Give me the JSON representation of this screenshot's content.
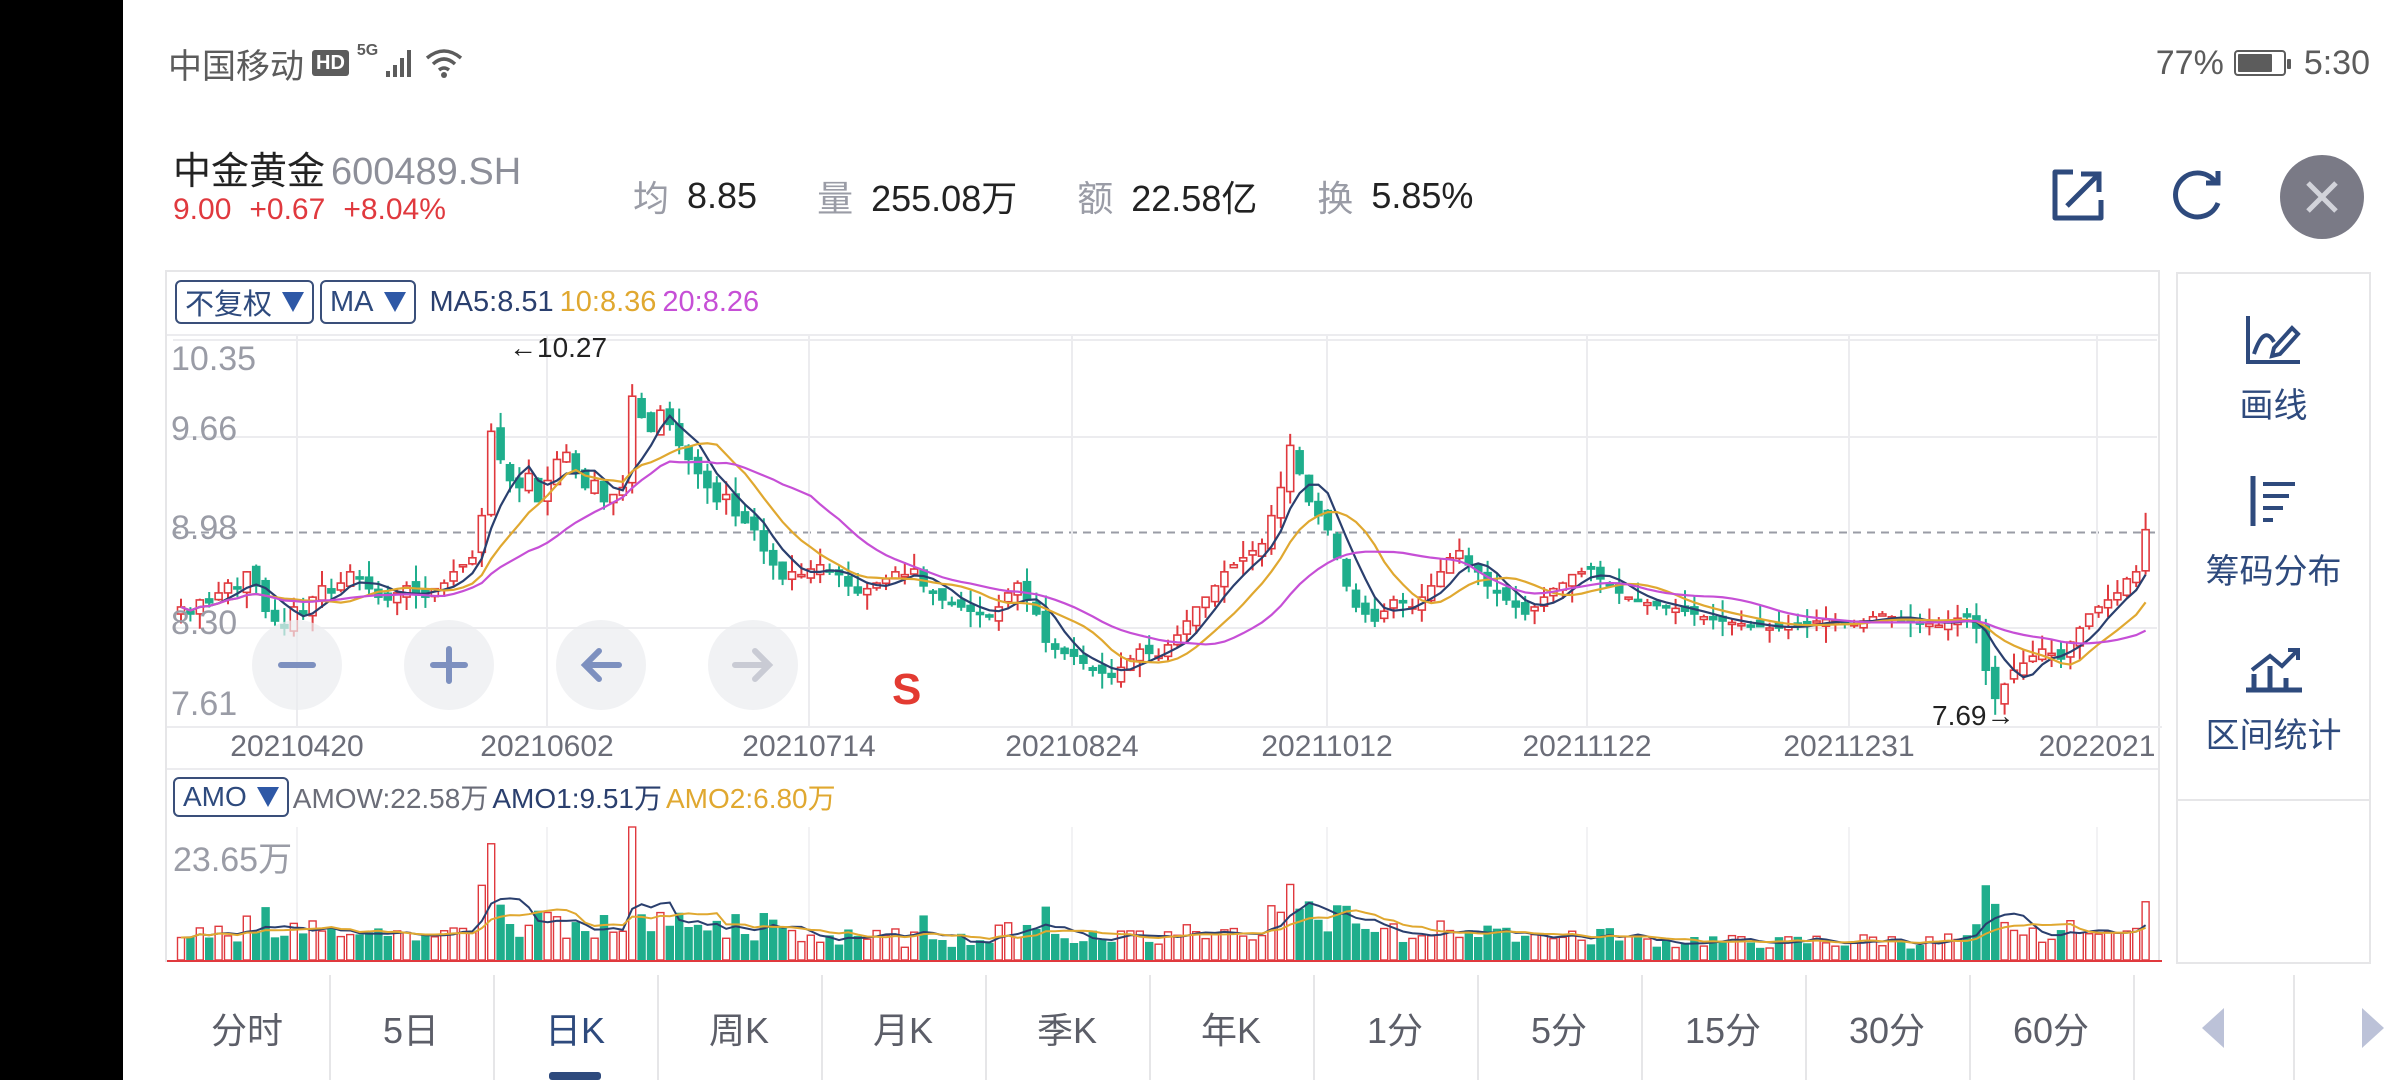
{
  "status_bar": {
    "carrier": "中国移动",
    "hd_badge": "HD",
    "network": "5G",
    "battery_percent": "77%",
    "time": "5:30"
  },
  "header": {
    "stock_name": "中金黄金",
    "stock_code": "600489.SH",
    "price": "9.00",
    "change": "+0.67",
    "change_pct": "+8.04%",
    "stats": [
      {
        "label": "均",
        "value": "8.85"
      },
      {
        "label": "量",
        "value": "255.08万"
      },
      {
        "label": "额",
        "value": "22.58亿"
      },
      {
        "label": "换",
        "value": "5.85%"
      }
    ],
    "buttons": {
      "share": "share-icon",
      "refresh": "refresh-icon",
      "close": "close-icon"
    }
  },
  "chart_toolbar": {
    "adjust_select": "不复权",
    "indicator_select": "MA",
    "ma5": "MA5:8.51",
    "ma10": "10:8.36",
    "ma20": "20:8.26"
  },
  "volume_toolbar": {
    "indicator_select": "AMO",
    "amow": "AMOW:22.58万",
    "amo1": "AMO1:9.51万",
    "amo2": "AMO2:6.80万",
    "max_label": "23.65万"
  },
  "zoom_controls": [
    "zoom-out",
    "zoom-in",
    "pan-left",
    "pan-right"
  ],
  "signal_marker": "S",
  "side_panel": {
    "items": [
      {
        "label": "画线",
        "icon": "draw-line-icon"
      },
      {
        "label": "筹码分布",
        "icon": "chip-distribution-icon"
      },
      {
        "label": "区间统计",
        "icon": "interval-stats-icon"
      }
    ]
  },
  "tabs": [
    {
      "label": "分时",
      "active": false
    },
    {
      "label": "5日",
      "active": false
    },
    {
      "label": "日K",
      "active": true
    },
    {
      "label": "周K",
      "active": false
    },
    {
      "label": "月K",
      "active": false
    },
    {
      "label": "季K",
      "active": false
    },
    {
      "label": "年K",
      "active": false
    },
    {
      "label": "1分",
      "active": false
    },
    {
      "label": "5分",
      "active": false
    },
    {
      "label": "15分",
      "active": false
    },
    {
      "label": "30分",
      "active": false
    },
    {
      "label": "60分",
      "active": false
    }
  ],
  "colors": {
    "up": "#e0393e",
    "down": "#1fae8c",
    "ma5": "#2a3f6e",
    "ma10": "#e0a830",
    "ma20": "#c64fd6",
    "accent": "#2e4a7d"
  },
  "chart_data": [
    {
      "type": "candlestick",
      "title": "中金黄金 600489.SH 日K",
      "y_ticks": [
        10.35,
        9.66,
        8.98,
        8.3,
        7.61
      ],
      "ylim": [
        7.61,
        10.35
      ],
      "x_ticks": [
        "20210420",
        "20210602",
        "20210714",
        "20210824",
        "20211012",
        "20211122",
        "20211231",
        "2022021"
      ],
      "reference_line": 8.98,
      "annotations": [
        {
          "text": "←10.27",
          "value": 10.27
        },
        {
          "text": "7.69→",
          "value": 7.69
        }
      ],
      "legend": [
        "MA5:8.51",
        "10:8.36",
        "20:8.26"
      ],
      "grid": true,
      "close_series": [
        8.45,
        8.4,
        8.5,
        8.48,
        8.55,
        8.62,
        8.58,
        8.7,
        8.6,
        8.42,
        8.35,
        8.3,
        8.45,
        8.4,
        8.52,
        8.6,
        8.55,
        8.62,
        8.7,
        8.65,
        8.58,
        8.52,
        8.5,
        8.55,
        8.6,
        8.55,
        8.52,
        8.58,
        8.62,
        8.7,
        8.75,
        8.8,
        9.1,
        9.7,
        9.5,
        9.35,
        9.3,
        9.4,
        9.2,
        9.35,
        9.5,
        9.55,
        9.4,
        9.3,
        9.35,
        9.2,
        9.25,
        9.3,
        9.95,
        9.8,
        9.7,
        9.85,
        9.75,
        9.6,
        9.5,
        9.4,
        9.3,
        9.2,
        9.25,
        9.1,
        9.05,
        9.0,
        8.85,
        8.75,
        8.65,
        8.7,
        8.68,
        8.72,
        8.75,
        8.7,
        8.68,
        8.6,
        8.55,
        8.58,
        8.62,
        8.65,
        8.7,
        8.68,
        8.72,
        8.6,
        8.55,
        8.5,
        8.48,
        8.45,
        8.42,
        8.4,
        8.38,
        8.45,
        8.55,
        8.62,
        8.5,
        8.4,
        8.2,
        8.15,
        8.12,
        8.1,
        8.05,
        8.0,
        7.98,
        7.95,
        8.02,
        8.08,
        8.15,
        8.12,
        8.1,
        8.18,
        8.25,
        8.35,
        8.45,
        8.52,
        8.6,
        8.7,
        8.75,
        8.8,
        8.85,
        8.9,
        9.1,
        9.3,
        9.6,
        9.4,
        9.2,
        9.1,
        9.0,
        8.8,
        8.6,
        8.45,
        8.4,
        8.35,
        8.42,
        8.5,
        8.48,
        8.45,
        8.52,
        8.6,
        8.7,
        8.8,
        8.85,
        8.75,
        8.7,
        8.6,
        8.55,
        8.5,
        8.45,
        8.4,
        8.45,
        8.52,
        8.58,
        8.62,
        8.68,
        8.7,
        8.72,
        8.65,
        8.6,
        8.55,
        8.52,
        8.5,
        8.48,
        8.46,
        8.45,
        8.44,
        8.42,
        8.4,
        8.38,
        8.36,
        8.35,
        8.34,
        8.33,
        8.32,
        8.31,
        8.3,
        8.3,
        8.31,
        8.32,
        8.33,
        8.35,
        8.36,
        8.35,
        8.34,
        8.33,
        8.35,
        8.38,
        8.4,
        8.38,
        8.36,
        8.35,
        8.34,
        8.33,
        8.32,
        8.35,
        8.37,
        8.38,
        8.3,
        8.0,
        7.8,
        7.9,
        8.0,
        8.05,
        8.1,
        8.15,
        8.12,
        8.08,
        8.2,
        8.3,
        8.4,
        8.45,
        8.5,
        8.55,
        8.65,
        8.7,
        9.0
      ]
    },
    {
      "type": "bar",
      "title": "AMO",
      "ylabel_max": "23.65万",
      "legend": [
        "AMOW:22.58万",
        "AMO1:9.51万",
        "AMO2:6.80万"
      ]
    }
  ]
}
